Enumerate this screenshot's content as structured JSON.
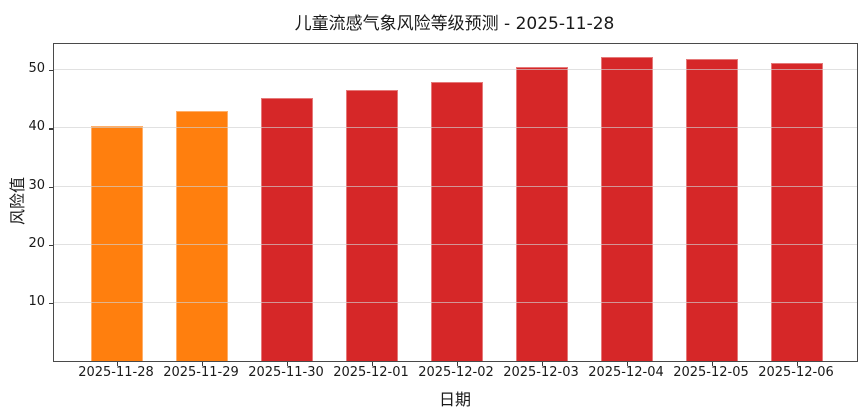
{
  "chart_data": {
    "type": "bar",
    "title": "儿童流感气象风险等级预测 - 2025-11-28",
    "xlabel": "日期",
    "ylabel": "风险值",
    "categories": [
      "2025-11-28",
      "2025-11-29",
      "2025-11-30",
      "2025-12-01",
      "2025-12-02",
      "2025-12-03",
      "2025-12-04",
      "2025-12-05",
      "2025-12-06"
    ],
    "values": [
      40.4,
      43.0,
      45.2,
      46.6,
      48.0,
      50.6,
      52.2,
      51.9,
      51.3
    ],
    "bar_colors": [
      "#ff7f0e",
      "#ff7f0e",
      "#d62728",
      "#d62728",
      "#d62728",
      "#d62728",
      "#d62728",
      "#d62728",
      "#d62728"
    ],
    "ylim": [
      0,
      54.5
    ],
    "yticks": [
      10,
      20,
      30,
      40,
      50
    ],
    "grid": "horizontal",
    "legend": "none",
    "colors": {
      "highlight_orange": "#ff7f0e",
      "risk_red": "#d62728",
      "gridline": "#e6e6e6",
      "spine": "#4a4a4a",
      "text": "#1a1a1a",
      "background": "#ffffff"
    }
  }
}
